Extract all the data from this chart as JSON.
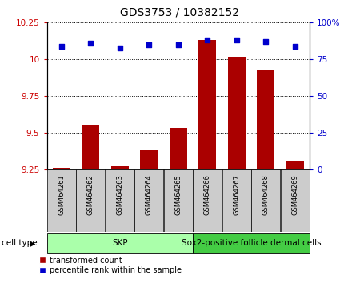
{
  "title": "GDS3753 / 10382152",
  "samples": [
    "GSM464261",
    "GSM464262",
    "GSM464263",
    "GSM464264",
    "GSM464265",
    "GSM464266",
    "GSM464267",
    "GSM464268",
    "GSM464269"
  ],
  "transformed_count": [
    9.265,
    9.555,
    9.275,
    9.38,
    9.535,
    10.13,
    10.02,
    9.93,
    9.305
  ],
  "percentile_rank": [
    84,
    86,
    83,
    85,
    85,
    88,
    88,
    87,
    84
  ],
  "ylim_left": [
    9.25,
    10.25
  ],
  "ylim_right": [
    0,
    100
  ],
  "yticks_left": [
    9.25,
    9.5,
    9.75,
    10.0,
    10.25
  ],
  "yticks_right": [
    0,
    25,
    50,
    75,
    100
  ],
  "ytick_labels_left": [
    "9.25",
    "9.5",
    "9.75",
    "10",
    "10.25"
  ],
  "ytick_labels_right": [
    "0",
    "25",
    "50",
    "75",
    "100%"
  ],
  "bar_color": "#aa0000",
  "dot_color": "#0000cc",
  "bar_width": 0.6,
  "cell_types": [
    {
      "label": "SKP",
      "start": 0,
      "end": 4,
      "color": "#aaffaa"
    },
    {
      "label": "Sox2-positive follicle dermal cells",
      "start": 5,
      "end": 8,
      "color": "#44cc44"
    }
  ],
  "legend_bar_label": "transformed count",
  "legend_dot_label": "percentile rank within the sample",
  "cell_type_label": "cell type",
  "bg_color": "#ffffff",
  "plot_bg": "#ffffff",
  "label_color_left": "#cc0000",
  "label_color_right": "#0000cc",
  "sample_box_color": "#cccccc",
  "title_fontsize": 10,
  "tick_fontsize": 7.5,
  "sample_fontsize": 6,
  "cell_type_fontsize": 7.5,
  "legend_fontsize": 7
}
